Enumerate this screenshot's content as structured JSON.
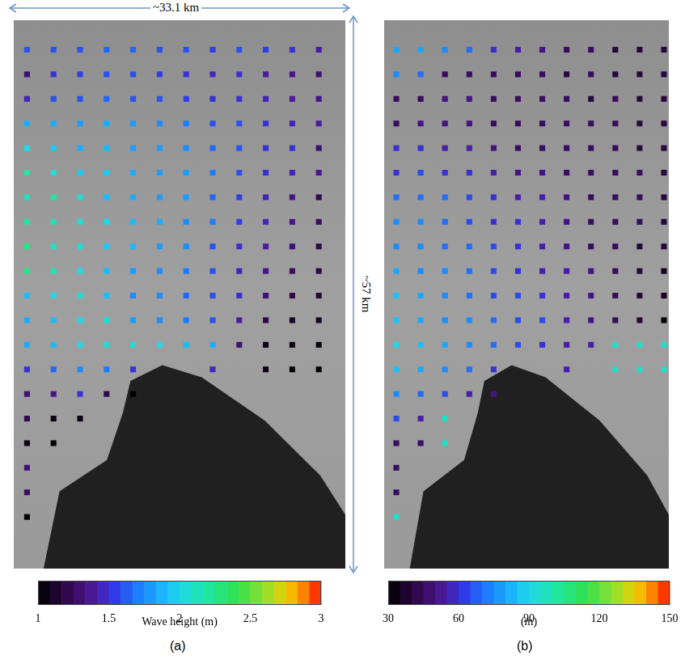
{
  "chart_data": [
    {
      "type": "heatmap",
      "label": "(a)",
      "tick_labels": false,
      "grid": false,
      "annotations": [
        "~33.1 km",
        "~57 km"
      ],
      "xlim": [
        0.5,
        13
      ],
      "ylim": [
        -0.2,
        22.1
      ],
      "colorbar": {
        "range": [
          1,
          3
        ],
        "ticks": [
          1,
          1.5,
          2,
          2.5,
          3
        ],
        "label": "Wave height (m)"
      },
      "cells": [
        [
          1.6,
          1.6,
          1.6,
          1.65,
          1.65,
          1.6,
          1.6,
          1.55,
          1.6,
          1.55,
          1.5,
          1.4
        ],
        [
          1.3,
          1.5,
          1.55,
          1.6,
          1.6,
          1.55,
          1.5,
          1.45,
          1.5,
          1.4,
          1.35,
          1.3
        ],
        [
          1.45,
          1.6,
          1.6,
          1.65,
          1.6,
          1.6,
          1.55,
          1.5,
          1.5,
          1.45,
          1.4,
          1.35
        ],
        [
          1.85,
          1.85,
          1.8,
          1.85,
          1.8,
          1.75,
          1.7,
          1.6,
          1.6,
          1.5,
          1.45,
          1.4
        ],
        [
          2.0,
          1.95,
          1.85,
          1.9,
          1.8,
          1.8,
          1.75,
          1.65,
          1.6,
          1.5,
          1.5,
          1.3
        ],
        [
          2.2,
          2.05,
          1.95,
          1.95,
          1.85,
          1.8,
          1.8,
          1.7,
          1.6,
          1.5,
          1.45,
          1.35
        ],
        [
          2.1,
          2.2,
          2.05,
          1.9,
          1.85,
          1.8,
          1.8,
          1.65,
          1.55,
          1.45,
          1.35,
          1.2
        ],
        [
          2.2,
          2.15,
          2.05,
          2.0,
          1.9,
          1.85,
          1.75,
          1.7,
          1.55,
          1.45,
          1.35,
          1.25
        ],
        [
          2.25,
          2.1,
          2.05,
          1.95,
          1.9,
          1.8,
          1.75,
          1.6,
          1.5,
          1.4,
          1.3,
          1.2
        ],
        [
          2.25,
          2.15,
          2.0,
          1.9,
          1.8,
          1.75,
          1.7,
          1.6,
          1.45,
          1.35,
          1.25,
          1.2
        ],
        [
          1.9,
          2.0,
          2.05,
          1.9,
          1.75,
          1.75,
          1.65,
          1.6,
          1.5,
          1.3,
          1.2,
          1.15
        ],
        [
          1.85,
          1.9,
          2.0,
          2.05,
          1.8,
          1.75,
          1.7,
          1.6,
          1.4,
          1.2,
          1.1,
          1.1
        ],
        [
          1.85,
          1.9,
          2.0,
          2.05,
          2.05,
          2.0,
          1.9,
          1.85,
          1.3,
          1.05,
          1.05,
          1.05
        ],
        [
          1.5,
          1.65,
          1.75,
          1.7,
          1.5,
          null,
          null,
          1.45,
          null,
          1.05,
          1.0,
          1.0
        ],
        [
          1.3,
          1.35,
          1.5,
          1.2,
          1.0,
          null,
          null,
          null,
          null,
          null,
          null,
          null
        ],
        [
          1.2,
          1.05,
          1.05,
          null,
          null,
          null,
          null,
          null,
          null,
          null,
          null,
          null
        ],
        [
          1.05,
          1.0,
          null,
          null,
          null,
          null,
          null,
          null,
          null,
          null,
          null,
          null
        ],
        [
          1.3,
          null,
          null,
          null,
          null,
          null,
          null,
          null,
          null,
          null,
          null,
          null
        ],
        [
          1.25,
          null,
          null,
          null,
          null,
          null,
          null,
          null,
          null,
          null,
          null,
          null
        ],
        [
          1.0,
          null,
          null,
          null,
          null,
          null,
          null,
          null,
          null,
          null,
          null,
          null
        ]
      ]
    },
    {
      "type": "heatmap",
      "label": "(b)",
      "tick_labels": false,
      "grid": false,
      "xlim": [
        0.5,
        12.2
      ],
      "ylim": [
        -0.2,
        22.1
      ],
      "colorbar": {
        "range": [
          30,
          150
        ],
        "ticks": [
          30,
          60,
          90,
          120,
          150
        ],
        "label": "(m)"
      },
      "cells": [
        [
          80,
          80,
          75,
          70,
          60,
          55,
          50,
          45,
          45,
          40,
          40,
          40
        ],
        [
          75,
          70,
          45,
          45,
          45,
          45,
          45,
          40,
          45,
          40,
          40,
          40
        ],
        [
          45,
          45,
          50,
          50,
          45,
          45,
          45,
          45,
          40,
          45,
          40,
          40
        ],
        [
          45,
          50,
          50,
          50,
          45,
          45,
          45,
          45,
          45,
          45,
          40,
          40
        ],
        [
          60,
          60,
          55,
          55,
          50,
          45,
          45,
          45,
          45,
          45,
          40,
          40
        ],
        [
          60,
          65,
          60,
          60,
          55,
          50,
          50,
          45,
          45,
          45,
          45,
          40
        ],
        [
          70,
          70,
          70,
          65,
          60,
          55,
          55,
          50,
          45,
          45,
          45,
          40
        ],
        [
          75,
          75,
          70,
          65,
          60,
          60,
          55,
          50,
          45,
          45,
          45,
          40
        ],
        [
          75,
          75,
          70,
          70,
          65,
          60,
          55,
          50,
          45,
          45,
          40,
          40
        ],
        [
          80,
          75,
          75,
          70,
          65,
          60,
          55,
          55,
          50,
          45,
          40,
          35
        ],
        [
          85,
          80,
          75,
          70,
          65,
          65,
          60,
          55,
          50,
          45,
          40,
          35
        ],
        [
          85,
          80,
          75,
          75,
          70,
          65,
          65,
          55,
          50,
          45,
          40,
          30
        ],
        [
          90,
          85,
          80,
          75,
          70,
          65,
          60,
          55,
          55,
          95,
          95,
          95
        ],
        [
          85,
          80,
          75,
          70,
          60,
          null,
          null,
          55,
          null,
          95,
          95,
          95
        ],
        [
          75,
          70,
          65,
          55,
          50,
          null,
          null,
          null,
          null,
          null,
          null,
          null
        ],
        [
          65,
          55,
          95,
          null,
          null,
          null,
          null,
          null,
          null,
          null,
          null,
          null
        ],
        [
          45,
          45,
          95,
          null,
          null,
          null,
          null,
          null,
          null,
          null,
          null,
          null
        ],
        [
          45,
          null,
          null,
          null,
          null,
          null,
          null,
          null,
          null,
          null,
          null,
          null
        ],
        [
          45,
          null,
          null,
          null,
          null,
          null,
          null,
          null,
          null,
          null,
          null,
          null
        ],
        [
          95,
          null,
          null,
          null,
          null,
          null,
          null,
          null,
          null,
          null,
          null,
          null
        ]
      ]
    }
  ]
}
